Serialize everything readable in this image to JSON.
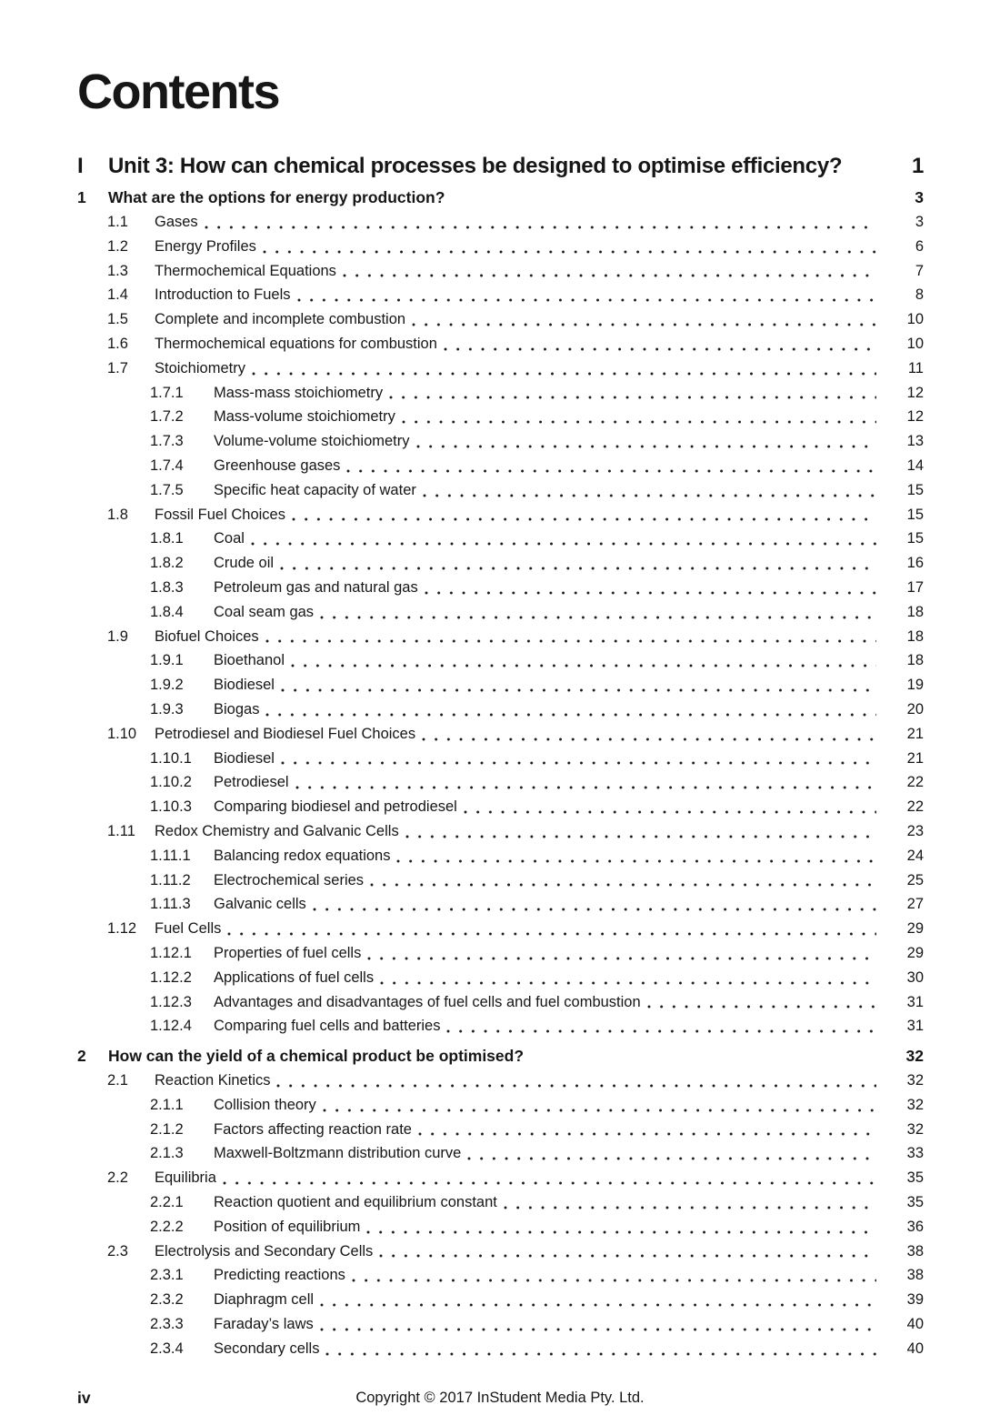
{
  "page": {
    "title": "Contents",
    "footer": {
      "page_label": "iv",
      "copyright": "Copyright © 2017 InStudent Media Pty. Ltd."
    }
  },
  "toc": {
    "parts": [
      {
        "label": "I",
        "title": "Unit 3: How can chemical processes be designed to optimise efficiency?",
        "page": "1",
        "chapters": [
          {
            "label": "1",
            "title": "What are the options for energy production?",
            "page": "3",
            "entries": [
              {
                "num": "1.1",
                "title": "Gases",
                "page": "3",
                "level": 1
              },
              {
                "num": "1.2",
                "title": "Energy Profiles",
                "page": "6",
                "level": 1
              },
              {
                "num": "1.3",
                "title": "Thermochemical Equations",
                "page": "7",
                "level": 1
              },
              {
                "num": "1.4",
                "title": "Introduction to Fuels",
                "page": "8",
                "level": 1
              },
              {
                "num": "1.5",
                "title": "Complete and incomplete combustion",
                "page": "10",
                "level": 1
              },
              {
                "num": "1.6",
                "title": "Thermochemical equations for combustion",
                "page": "10",
                "level": 1
              },
              {
                "num": "1.7",
                "title": "Stoichiometry",
                "page": "11",
                "level": 1
              },
              {
                "num": "1.7.1",
                "title": "Mass-mass stoichiometry",
                "page": "12",
                "level": 2
              },
              {
                "num": "1.7.2",
                "title": "Mass-volume stoichiometry",
                "page": "12",
                "level": 2
              },
              {
                "num": "1.7.3",
                "title": "Volume-volume stoichiometry",
                "page": "13",
                "level": 2
              },
              {
                "num": "1.7.4",
                "title": "Greenhouse gases",
                "page": "14",
                "level": 2
              },
              {
                "num": "1.7.5",
                "title": "Specific heat capacity of water",
                "page": "15",
                "level": 2
              },
              {
                "num": "1.8",
                "title": "Fossil Fuel Choices",
                "page": "15",
                "level": 1
              },
              {
                "num": "1.8.1",
                "title": "Coal",
                "page": "15",
                "level": 2
              },
              {
                "num": "1.8.2",
                "title": "Crude oil",
                "page": "16",
                "level": 2
              },
              {
                "num": "1.8.3",
                "title": "Petroleum gas and natural gas",
                "page": "17",
                "level": 2
              },
              {
                "num": "1.8.4",
                "title": "Coal seam gas",
                "page": "18",
                "level": 2
              },
              {
                "num": "1.9",
                "title": "Biofuel Choices",
                "page": "18",
                "level": 1
              },
              {
                "num": "1.9.1",
                "title": "Bioethanol",
                "page": "18",
                "level": 2
              },
              {
                "num": "1.9.2",
                "title": "Biodiesel",
                "page": "19",
                "level": 2
              },
              {
                "num": "1.9.3",
                "title": "Biogas",
                "page": "20",
                "level": 2
              },
              {
                "num": "1.10",
                "title": "Petrodiesel and Biodiesel Fuel Choices",
                "page": "21",
                "level": 1
              },
              {
                "num": "1.10.1",
                "title": "Biodiesel",
                "page": "21",
                "level": 2
              },
              {
                "num": "1.10.2",
                "title": "Petrodiesel",
                "page": "22",
                "level": 2
              },
              {
                "num": "1.10.3",
                "title": "Comparing biodiesel and petrodiesel",
                "page": "22",
                "level": 2
              },
              {
                "num": "1.11",
                "title": "Redox Chemistry and Galvanic Cells",
                "page": "23",
                "level": 1
              },
              {
                "num": "1.11.1",
                "title": "Balancing redox equations",
                "page": "24",
                "level": 2
              },
              {
                "num": "1.11.2",
                "title": "Electrochemical series",
                "page": "25",
                "level": 2
              },
              {
                "num": "1.11.3",
                "title": "Galvanic cells",
                "page": "27",
                "level": 2
              },
              {
                "num": "1.12",
                "title": "Fuel Cells",
                "page": "29",
                "level": 1
              },
              {
                "num": "1.12.1",
                "title": "Properties of fuel cells",
                "page": "29",
                "level": 2
              },
              {
                "num": "1.12.2",
                "title": "Applications of fuel cells",
                "page": "30",
                "level": 2
              },
              {
                "num": "1.12.3",
                "title": "Advantages and disadvantages of fuel cells and fuel combustion",
                "page": "31",
                "level": 2
              },
              {
                "num": "1.12.4",
                "title": "Comparing fuel cells and batteries",
                "page": "31",
                "level": 2
              }
            ]
          },
          {
            "label": "2",
            "title": "How can the yield of a chemical product be optimised?",
            "page": "32",
            "entries": [
              {
                "num": "2.1",
                "title": "Reaction Kinetics",
                "page": "32",
                "level": 1
              },
              {
                "num": "2.1.1",
                "title": "Collision theory",
                "page": "32",
                "level": 2
              },
              {
                "num": "2.1.2",
                "title": "Factors affecting reaction rate",
                "page": "32",
                "level": 2
              },
              {
                "num": "2.1.3",
                "title": "Maxwell-Boltzmann distribution curve",
                "page": "33",
                "level": 2
              },
              {
                "num": "2.2",
                "title": "Equilibria",
                "page": "35",
                "level": 1
              },
              {
                "num": "2.2.1",
                "title": "Reaction quotient and equilibrium constant",
                "page": "35",
                "level": 2
              },
              {
                "num": "2.2.2",
                "title": "Position of equilibrium",
                "page": "36",
                "level": 2
              },
              {
                "num": "2.3",
                "title": "Electrolysis and Secondary Cells",
                "page": "38",
                "level": 1
              },
              {
                "num": "2.3.1",
                "title": "Predicting reactions",
                "page": "38",
                "level": 2
              },
              {
                "num": "2.3.2",
                "title": "Diaphragm cell",
                "page": "39",
                "level": 2
              },
              {
                "num": "2.3.3",
                "title": "Faraday’s laws",
                "page": "40",
                "level": 2
              },
              {
                "num": "2.3.4",
                "title": "Secondary cells",
                "page": "40",
                "level": 2
              }
            ]
          }
        ]
      }
    ]
  }
}
